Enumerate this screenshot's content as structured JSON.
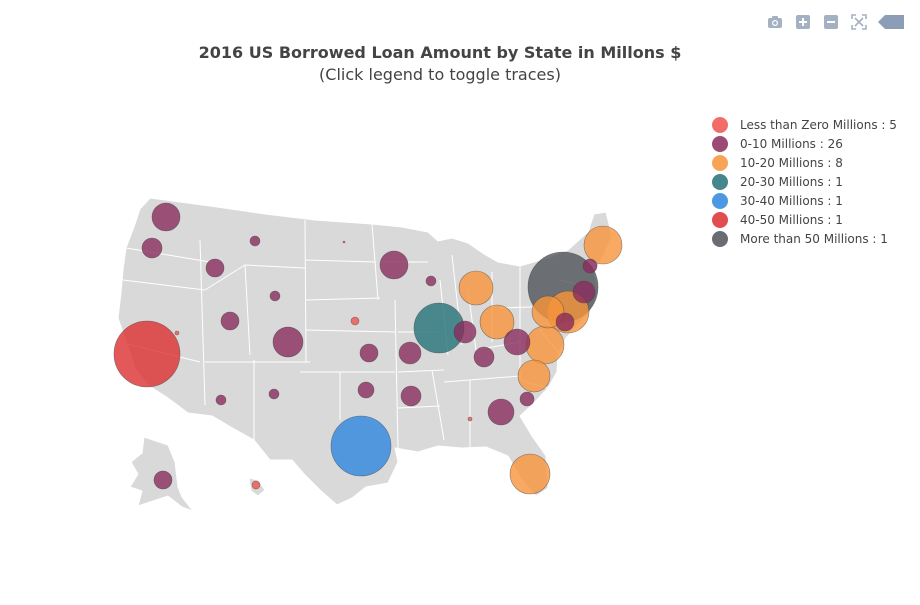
{
  "title": "2016 US Borrowed Loan Amount by State in Millons $",
  "subtitle": "(Click legend to toggle traces)",
  "toolbar": [
    {
      "name": "camera-icon",
      "label": "Download plot as a png"
    },
    {
      "name": "zoom-in-icon",
      "label": "Zoom in"
    },
    {
      "name": "zoom-out-icon",
      "label": "Zoom out"
    },
    {
      "name": "autoscale-icon",
      "label": "Reset"
    },
    {
      "name": "plotly-logo-icon",
      "label": "Produced with Plotly"
    }
  ],
  "legend": [
    {
      "label": "Less than Zero Millions : 5",
      "color": "#ee5450"
    },
    {
      "label": "0-10 Millions : 26",
      "color": "#8a2c5c"
    },
    {
      "label": "10-20 Millions : 8",
      "color": "#f7943a"
    },
    {
      "label": "20-30 Millions : 1",
      "color": "#237278"
    },
    {
      "label": "30-40 Millions : 1",
      "color": "#2e86de"
    },
    {
      "label": "40-50 Millions : 1",
      "color": "#dc2f2f"
    },
    {
      "label": "More than 50 Millions : 1",
      "color": "#4f5359"
    }
  ],
  "map": {
    "land_color": "#d9d9d9",
    "border_color": "#ffffff"
  }
}
